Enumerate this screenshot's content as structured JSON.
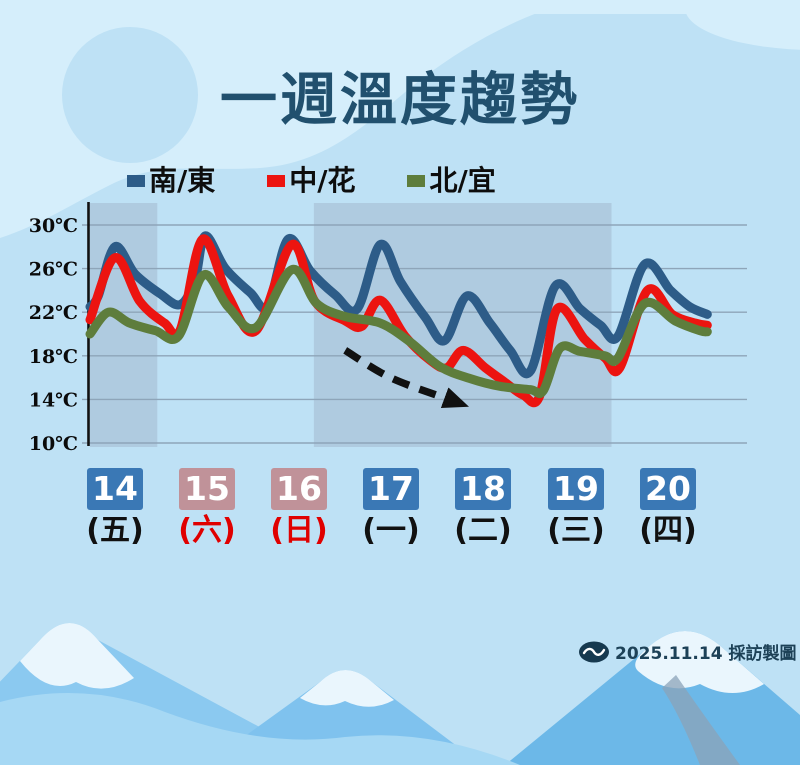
{
  "title": "一週溫度趨勢",
  "legend": {
    "items": [
      {
        "id": "south-east",
        "label": "南/東",
        "color": "#2d5c88"
      },
      {
        "id": "central-hualien",
        "label": "中/花",
        "color": "#ec1410"
      },
      {
        "id": "north-yilan",
        "label": "北/宜",
        "color": "#5e7d3c"
      }
    ]
  },
  "y_axis_labels": [
    "30℃",
    "26℃",
    "22℃",
    "18℃",
    "14℃",
    "10℃"
  ],
  "dates": [
    {
      "num": "14",
      "week": "(五)",
      "box_color": "#3a78b5",
      "num_color": "#ffffff",
      "week_color": "#111111"
    },
    {
      "num": "15",
      "week": "(六)",
      "box_color": "#c09299",
      "num_color": "#ffffff",
      "week_color": "#e00000"
    },
    {
      "num": "16",
      "week": "(日)",
      "box_color": "#c09299",
      "num_color": "#ffffff",
      "week_color": "#e00000"
    },
    {
      "num": "17",
      "week": "(一)",
      "box_color": "#3a78b5",
      "num_color": "#ffffff",
      "week_color": "#111111"
    },
    {
      "num": "18",
      "week": "(二)",
      "box_color": "#3a78b5",
      "num_color": "#ffffff",
      "week_color": "#111111"
    },
    {
      "num": "19",
      "week": "(三)",
      "box_color": "#3a78b5",
      "num_color": "#ffffff",
      "week_color": "#111111"
    },
    {
      "num": "20",
      "week": "(四)",
      "box_color": "#3a78b5",
      "num_color": "#ffffff",
      "week_color": "#111111"
    }
  ],
  "footer": {
    "credit": "2025.11.14 採訪製圖"
  },
  "chart_data": {
    "type": "line",
    "title": "一週溫度趨勢",
    "x_axis": {
      "unit": "day",
      "dates": [
        14,
        15,
        16,
        17,
        18,
        19,
        20
      ],
      "weekdays": [
        "五",
        "六",
        "日",
        "一",
        "二",
        "三",
        "四"
      ],
      "range_days": [
        0,
        7
      ]
    },
    "y_axis": {
      "label": "°C",
      "min": 10,
      "max": 30,
      "ticks": [
        30,
        26,
        22,
        18,
        14,
        10
      ],
      "grid": true
    },
    "legend_position": "top",
    "series": [
      {
        "id": "south-east",
        "name": "南/東",
        "color": "#2d5c88",
        "points": [
          [
            0,
            22.5
          ],
          [
            0.09,
            23.5
          ],
          [
            0.27,
            28.0
          ],
          [
            0.49,
            25.5
          ],
          [
            0.76,
            23.7
          ],
          [
            0.98,
            22.7
          ],
          [
            1.14,
            25.0
          ],
          [
            1.25,
            29.0
          ],
          [
            1.47,
            26.0
          ],
          [
            1.74,
            23.8
          ],
          [
            1.93,
            22.6
          ],
          [
            2.15,
            28.7
          ],
          [
            2.39,
            25.8
          ],
          [
            2.66,
            23.6
          ],
          [
            2.9,
            22.3
          ],
          [
            3.15,
            28.2
          ],
          [
            3.37,
            24.8
          ],
          [
            3.64,
            21.5
          ],
          [
            3.85,
            19.4
          ],
          [
            4.09,
            23.5
          ],
          [
            4.34,
            21.0
          ],
          [
            4.56,
            18.5
          ],
          [
            4.78,
            16.6
          ],
          [
            5.05,
            24.4
          ],
          [
            5.32,
            22.3
          ],
          [
            5.54,
            20.8
          ],
          [
            5.73,
            19.8
          ],
          [
            6.02,
            26.4
          ],
          [
            6.3,
            24.0
          ],
          [
            6.51,
            22.5
          ],
          [
            6.7,
            21.8
          ]
        ]
      },
      {
        "id": "central-hualien",
        "name": "中/花",
        "color": "#ec1410",
        "points": [
          [
            0,
            21.3
          ],
          [
            0.27,
            27.0
          ],
          [
            0.54,
            23.0
          ],
          [
            0.81,
            21.0
          ],
          [
            0.98,
            20.4
          ],
          [
            1.22,
            28.7
          ],
          [
            1.5,
            23.5
          ],
          [
            1.8,
            20.3
          ],
          [
            2.19,
            28.2
          ],
          [
            2.44,
            23.0
          ],
          [
            2.77,
            21.2
          ],
          [
            2.95,
            20.7
          ],
          [
            3.15,
            23.1
          ],
          [
            3.42,
            19.8
          ],
          [
            3.69,
            17.6
          ],
          [
            3.87,
            16.9
          ],
          [
            4.05,
            18.5
          ],
          [
            4.29,
            16.9
          ],
          [
            4.5,
            15.6
          ],
          [
            4.7,
            14.4
          ],
          [
            4.88,
            14.3
          ],
          [
            5.07,
            22.3
          ],
          [
            5.37,
            19.5
          ],
          [
            5.59,
            17.8
          ],
          [
            5.75,
            16.9
          ],
          [
            6.05,
            24.0
          ],
          [
            6.32,
            21.8
          ],
          [
            6.57,
            21.0
          ],
          [
            6.7,
            20.8
          ]
        ]
      },
      {
        "id": "north-yilan",
        "name": "北/宜",
        "color": "#5e7d3c",
        "points": [
          [
            0,
            20.0
          ],
          [
            0.2,
            22.0
          ],
          [
            0.43,
            21.0
          ],
          [
            0.71,
            20.3
          ],
          [
            0.96,
            19.8
          ],
          [
            1.23,
            25.4
          ],
          [
            1.5,
            22.5
          ],
          [
            1.8,
            20.6
          ],
          [
            2.19,
            25.9
          ],
          [
            2.46,
            22.8
          ],
          [
            2.77,
            21.6
          ],
          [
            3.15,
            21.0
          ],
          [
            3.47,
            19.3
          ],
          [
            3.8,
            17.0
          ],
          [
            4.13,
            15.9
          ],
          [
            4.45,
            15.2
          ],
          [
            4.78,
            14.9
          ],
          [
            4.92,
            14.8
          ],
          [
            5.1,
            18.7
          ],
          [
            5.32,
            18.4
          ],
          [
            5.59,
            18.0
          ],
          [
            5.73,
            17.8
          ],
          [
            6.02,
            22.8
          ],
          [
            6.35,
            21.2
          ],
          [
            6.62,
            20.3
          ],
          [
            6.7,
            20.2
          ]
        ]
      }
    ],
    "highlight_bands": [
      {
        "from_day": 0.0,
        "to_day": 0.73
      },
      {
        "from_day": 2.43,
        "to_day": 5.66
      }
    ],
    "trend_arrow": {
      "meaning": "temperature dropping",
      "points": [
        [
          2.77,
          18.5
        ],
        [
          3.26,
          16.0
        ],
        [
          3.93,
          13.9
        ]
      ],
      "color": "#111111"
    }
  }
}
